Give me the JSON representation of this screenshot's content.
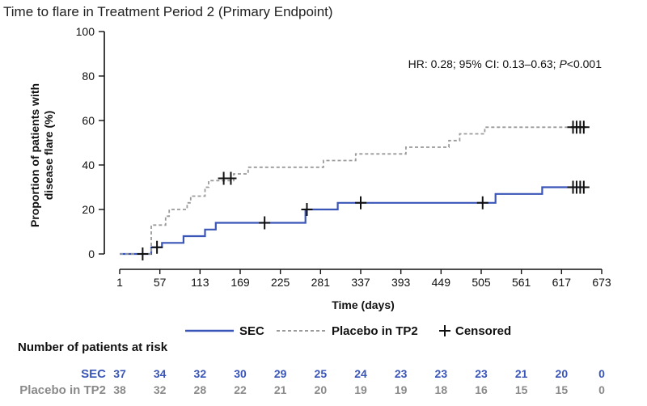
{
  "page": {
    "title": "Time to flare in Treatment Period 2 (Primary Endpoint)"
  },
  "chart_data": {
    "type": "line",
    "title": "Time to flare in Treatment Period 2 (Primary Endpoint)",
    "xlabel": "Time (days)",
    "ylabel_lines": [
      "Proportion of patients with",
      "disease flare (%)"
    ],
    "xlim": [
      1,
      673
    ],
    "ylim": [
      0,
      100
    ],
    "xticks": [
      1,
      57,
      113,
      169,
      225,
      281,
      337,
      393,
      449,
      505,
      561,
      617,
      673
    ],
    "yticks": [
      0,
      20,
      40,
      60,
      80,
      100
    ],
    "grid": false,
    "annotation": {
      "prefix": "HR: 0.28; 95% CI: 0.13–0.63; ",
      "p_symbol": "P",
      "p_value": "<0.001"
    },
    "colors": {
      "sec": "#3a55b8",
      "placebo": "#9a9a9a",
      "placebo_label": "#8a8a8a",
      "axis": "#111111"
    },
    "series": [
      {
        "name": "SEC",
        "style": "solid",
        "steps": [
          [
            1,
            0
          ],
          [
            30,
            0
          ],
          [
            45,
            3
          ],
          [
            60,
            5
          ],
          [
            90,
            8
          ],
          [
            120,
            11
          ],
          [
            135,
            14
          ],
          [
            260,
            20
          ],
          [
            305,
            23
          ],
          [
            525,
            27
          ],
          [
            590,
            30
          ],
          [
            650,
            30
          ]
        ],
        "censored": [
          [
            33,
            0
          ],
          [
            53,
            3
          ],
          [
            203,
            14
          ],
          [
            262,
            20
          ],
          [
            337,
            23
          ],
          [
            507,
            23
          ],
          [
            633,
            30
          ],
          [
            638,
            30
          ],
          [
            643,
            30
          ],
          [
            648,
            30
          ]
        ]
      },
      {
        "name": "Placebo in TP2",
        "style": "dashed",
        "steps": [
          [
            1,
            0
          ],
          [
            38,
            0
          ],
          [
            45,
            13
          ],
          [
            65,
            17
          ],
          [
            70,
            20
          ],
          [
            95,
            23
          ],
          [
            100,
            26
          ],
          [
            120,
            30
          ],
          [
            125,
            33
          ],
          [
            160,
            36
          ],
          [
            180,
            39
          ],
          [
            250,
            39
          ],
          [
            285,
            42
          ],
          [
            330,
            45
          ],
          [
            400,
            48
          ],
          [
            460,
            51
          ],
          [
            475,
            54
          ],
          [
            510,
            57
          ],
          [
            650,
            57
          ]
        ],
        "censored": [
          [
            146,
            34
          ],
          [
            156,
            34
          ],
          [
            633,
            57
          ],
          [
            638,
            57
          ],
          [
            643,
            57
          ],
          [
            648,
            57
          ]
        ]
      }
    ],
    "legend": {
      "position": "bottom",
      "items": [
        "SEC",
        "Placebo in TP2",
        "Censored"
      ]
    },
    "risk_table": {
      "title": "Number of patients at risk",
      "rows": [
        {
          "label": "SEC",
          "values": [
            37,
            34,
            32,
            30,
            29,
            25,
            24,
            23,
            23,
            23,
            21,
            20,
            0
          ]
        },
        {
          "label": "Placebo in TP2",
          "values": [
            38,
            32,
            28,
            22,
            21,
            20,
            19,
            19,
            18,
            16,
            15,
            15,
            0
          ]
        }
      ]
    }
  }
}
